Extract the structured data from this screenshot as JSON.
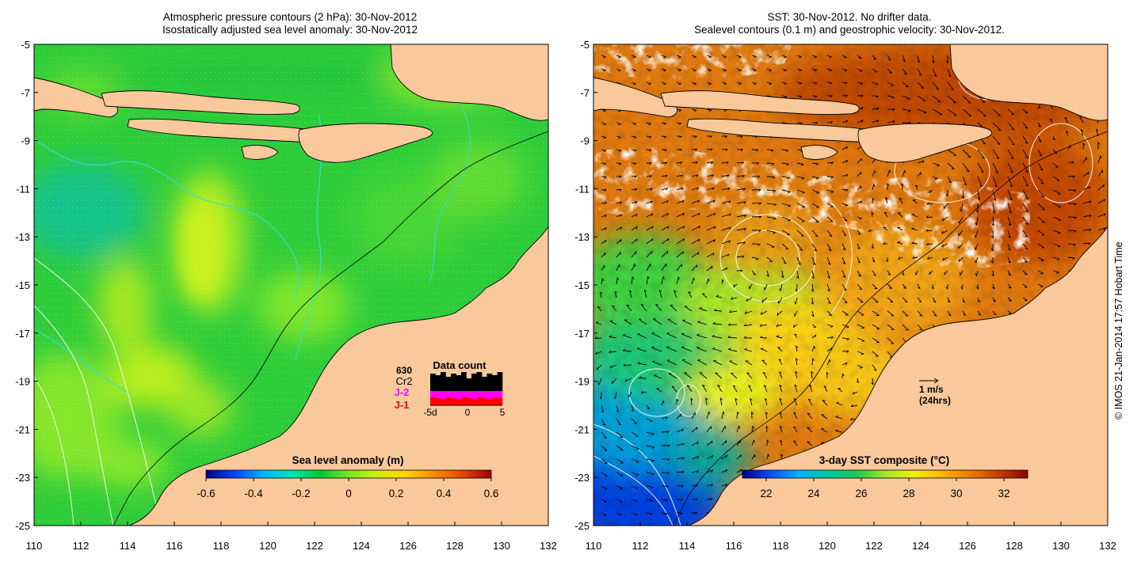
{
  "colors": {
    "land": "#f9c89b",
    "coast": "#000000",
    "sla_ramp": [
      "#00008c",
      "#0044ff",
      "#00b4ff",
      "#00e6b4",
      "#00c832",
      "#78e61e",
      "#d2f00a",
      "#ffd200",
      "#ff8c00",
      "#e64600",
      "#a00000"
    ],
    "sst_ramp": [
      "#00008c",
      "#0050ff",
      "#00b4ff",
      "#00c8a0",
      "#1ec850",
      "#a0e628",
      "#f0f014",
      "#ffb400",
      "#f07800",
      "#c83c00",
      "#8c0000"
    ],
    "count_black": "#000000",
    "count_j2": "#ff00ff",
    "count_j1": "#ff0000",
    "contour_cyan": "#33dddd",
    "contour_white": "#ffffff"
  },
  "left_panel": {
    "title_line1": "Atmospheric pressure contours (2 hPa): 30-Nov-2012",
    "title_line2": "Isostatically adjusted sea level anomaly: 30-Nov-2012",
    "colorbar": {
      "label": "Sea level anomaly (m)",
      "ticks": [
        "-0.6",
        "-0.4",
        "-0.2",
        "0",
        "0.2",
        "0.4",
        "0.6"
      ],
      "min": -0.6,
      "max": 0.6
    },
    "data_count": {
      "title": "Data count",
      "total": "630",
      "missions": [
        "Cr2",
        "J-2",
        "J-1"
      ],
      "axis_ticks": [
        "-5d",
        "0",
        "5"
      ]
    }
  },
  "right_panel": {
    "title_line1": "SST: 30-Nov-2012. No drifter data.",
    "title_line2": "Sealevel contours (0.1 m) and geostrophic velocity: 30-Nov-2012.",
    "colorbar": {
      "label": "3-day SST composite (°C)",
      "ticks": [
        "22",
        "24",
        "26",
        "28",
        "30",
        "32"
      ],
      "min": 21,
      "max": 33
    },
    "velocity_legend": {
      "line1": "1 m/s",
      "line2": "(24hrs)"
    }
  },
  "axes": {
    "lon_ticks": [
      "110",
      "112",
      "114",
      "116",
      "118",
      "120",
      "122",
      "124",
      "126",
      "128",
      "130",
      "132"
    ],
    "lat_ticks": [
      "-5",
      "-7",
      "-9",
      "-11",
      "-13",
      "-15",
      "-17",
      "-19",
      "-21",
      "-23",
      "-25"
    ],
    "lon_range": [
      110,
      132
    ],
    "lat_range": [
      -25,
      -5
    ]
  },
  "credit": "© IMOS 21-Jan-2014 17:57 Hobart Time"
}
